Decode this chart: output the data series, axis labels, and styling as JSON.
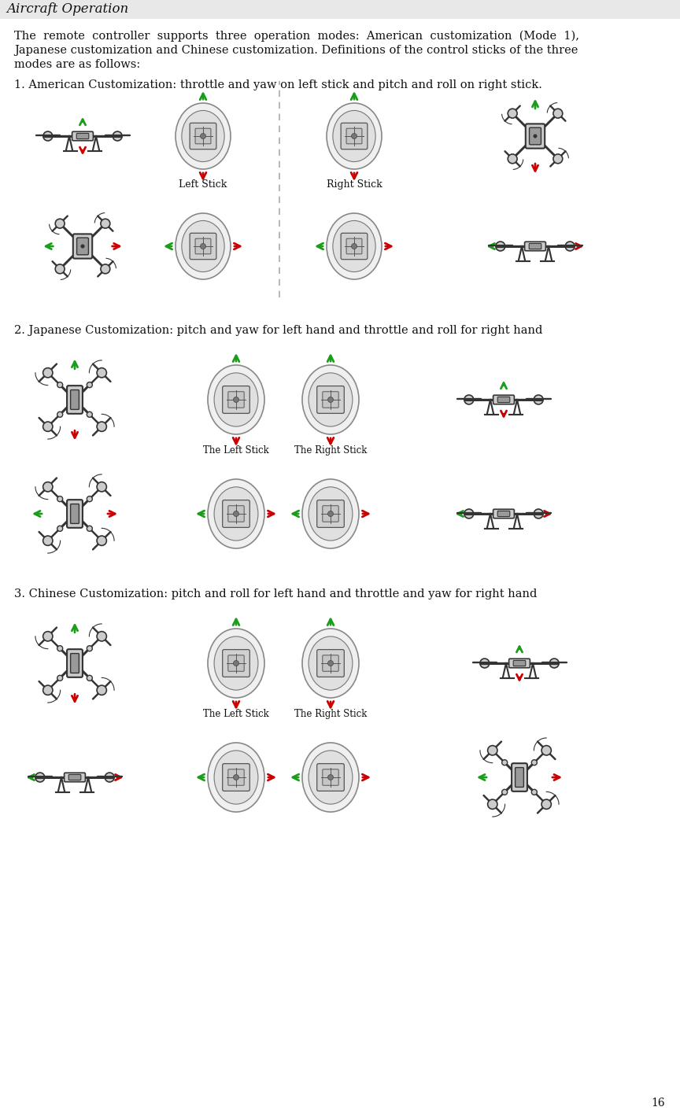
{
  "title": "Aircraft Operation",
  "page_number": "16",
  "background_color": "#ffffff",
  "title_bg_color": "#e8e8e8",
  "title_fontsize": 13,
  "body_fontsize": 10.5,
  "para1_line1": "The  remote  controller  supports  three  operation  modes:  American  customization  (Mode  1),",
  "para1_line2": "Japanese customization and Chinese customization. Definitions of the control sticks of the three",
  "para1_line3": "modes are as follows:",
  "section1_text": "1. American Customization: throttle and yaw on left stick and pitch and roll on right stick.",
  "section2_text": "2. Japanese Customization: pitch and yaw for left hand and throttle and roll for right hand",
  "section3_text": "3. Chinese Customization: pitch and roll for left hand and throttle and yaw for right hand",
  "left_stick_label": "Left Stick",
  "right_stick_label": "Right Stick",
  "the_left_stick_label": "The Left Stick",
  "the_right_stick_label": "The Right Stick",
  "green_color": "#1a9e1a",
  "red_color": "#cc0000",
  "drone_color": "#333333",
  "drone_light": "#cccccc",
  "drone_mid": "#999999",
  "stick_outer": "#d8d8d8",
  "stick_inner": "#bbbbbb",
  "dashed_color": "#aaaaaa",
  "text_color": "#111111"
}
